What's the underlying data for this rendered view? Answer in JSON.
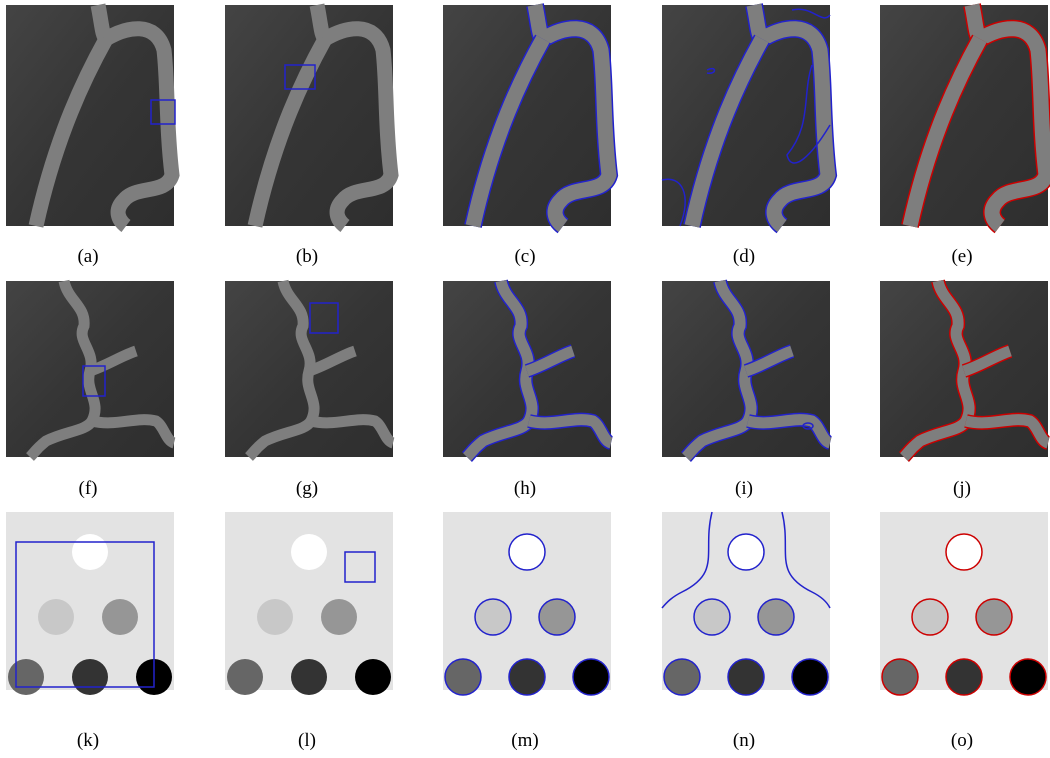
{
  "captions": [
    "(a)",
    "(b)",
    "(c)",
    "(d)",
    "(e)",
    "(f)",
    "(g)",
    "(h)",
    "(i)",
    "(j)",
    "(k)",
    "(l)",
    "(m)",
    "(n)",
    "(o)"
  ]
}
